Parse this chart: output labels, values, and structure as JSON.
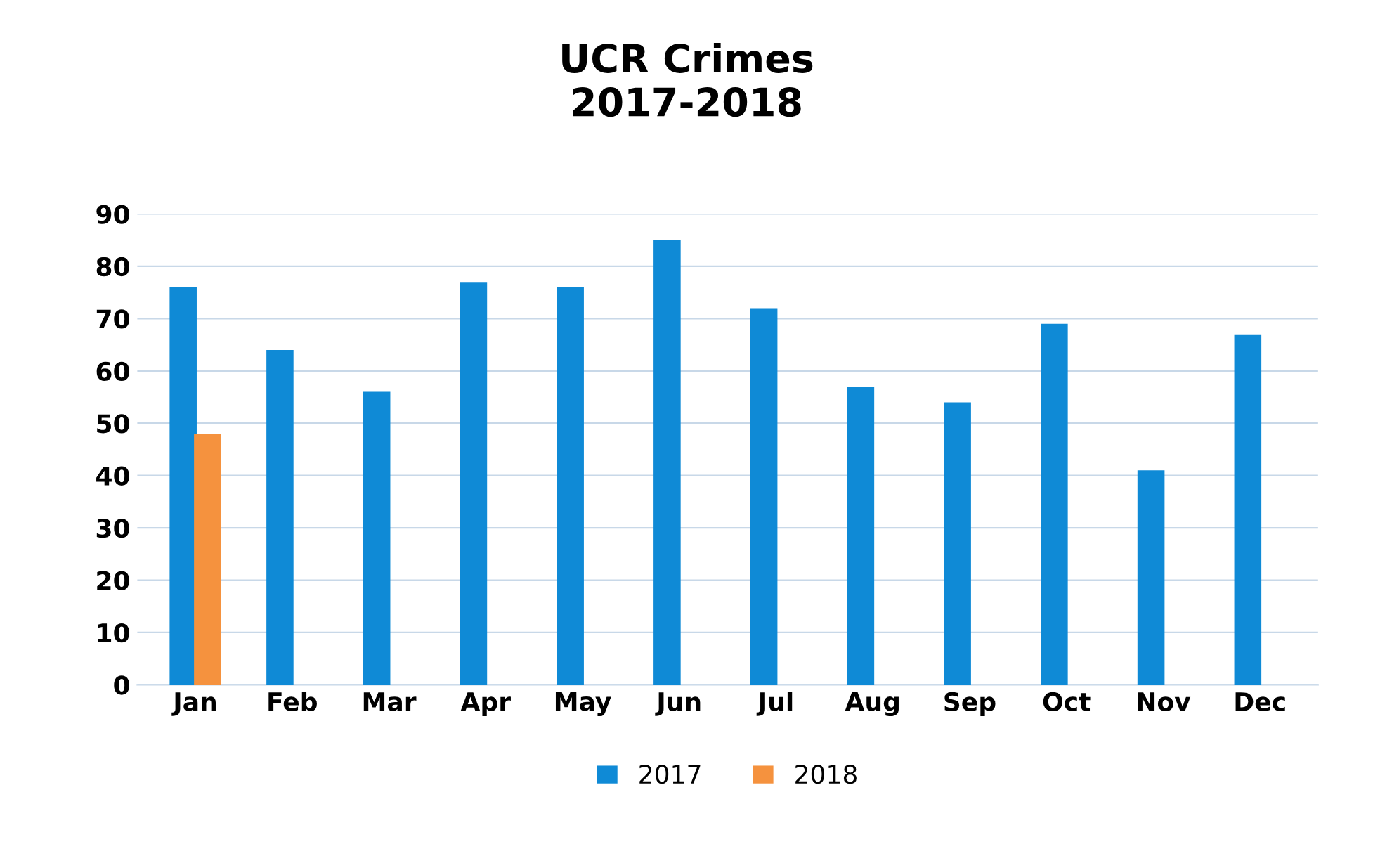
{
  "chart_data": {
    "type": "bar",
    "title": "UCR Crimes\n2017-2018",
    "categories": [
      "Jan",
      "Feb",
      "Mar",
      "Apr",
      "May",
      "Jun",
      "Jul",
      "Aug",
      "Sep",
      "Oct",
      "Nov",
      "Dec"
    ],
    "series": [
      {
        "name": "2017",
        "color": "#0f8ad6",
        "values": [
          76,
          64,
          56,
          77,
          76,
          85,
          72,
          57,
          54,
          69,
          41,
          67
        ]
      },
      {
        "name": "2018",
        "color": "#f5923e",
        "values": [
          48,
          null,
          null,
          null,
          null,
          null,
          null,
          null,
          null,
          null,
          null,
          null
        ]
      }
    ],
    "ylim": [
      0,
      90
    ],
    "yticks": [
      0,
      10,
      20,
      30,
      40,
      50,
      60,
      70,
      80,
      90
    ],
    "grid": "y",
    "legend": "bottom"
  }
}
